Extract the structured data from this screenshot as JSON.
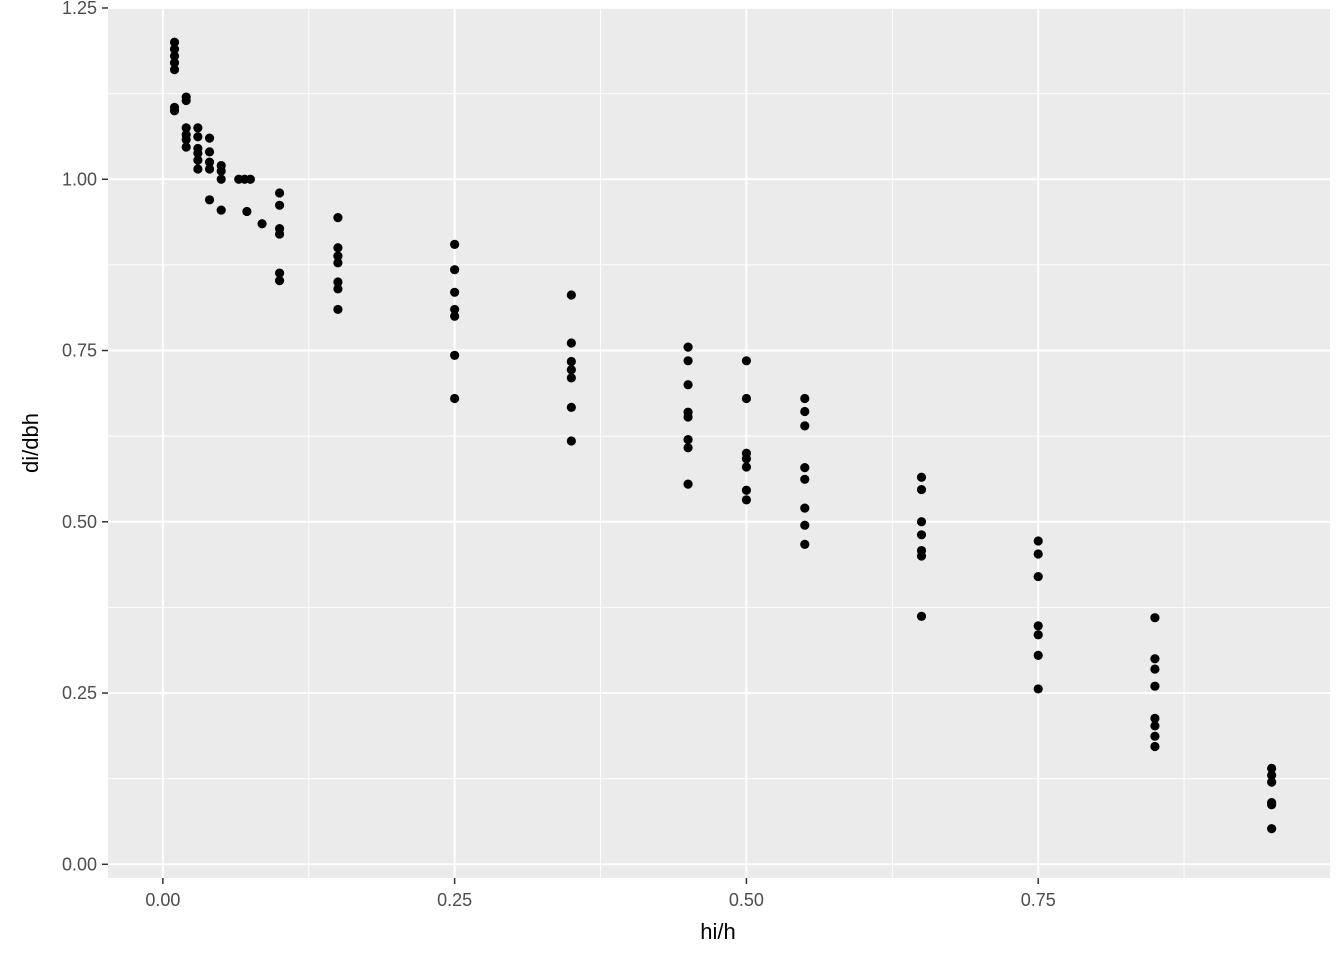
{
  "chart_data": {
    "type": "scatter",
    "title": "",
    "xlabel": "hi/h",
    "ylabel": "di/dbh",
    "xlim": [
      -0.047,
      1.0
    ],
    "ylim": [
      -0.02,
      1.25
    ],
    "x_ticks": [
      0.0,
      0.25,
      0.5,
      0.75
    ],
    "x_tick_labels": [
      "0.00",
      "0.25",
      "0.50",
      "0.75"
    ],
    "y_ticks": [
      0.0,
      0.25,
      0.5,
      0.75,
      1.0,
      1.25
    ],
    "y_tick_labels": [
      "0.00",
      "0.25",
      "0.50",
      "0.75",
      "1.00",
      "1.25"
    ],
    "grid": true,
    "legend": "none",
    "colors": {
      "panel": "#ebebeb",
      "grid": "#ffffff",
      "point": "#000000",
      "tick": "#333333"
    },
    "points": [
      [
        0.01,
        1.2
      ],
      [
        0.01,
        1.19
      ],
      [
        0.01,
        1.18
      ],
      [
        0.01,
        1.17
      ],
      [
        0.01,
        1.16
      ],
      [
        0.01,
        1.105
      ],
      [
        0.01,
        1.1
      ],
      [
        0.02,
        1.12
      ],
      [
        0.02,
        1.115
      ],
      [
        0.02,
        1.075
      ],
      [
        0.02,
        1.065
      ],
      [
        0.02,
        1.058
      ],
      [
        0.02,
        1.047
      ],
      [
        0.03,
        1.075
      ],
      [
        0.03,
        1.062
      ],
      [
        0.03,
        1.045
      ],
      [
        0.03,
        1.038
      ],
      [
        0.03,
        1.028
      ],
      [
        0.03,
        1.015
      ],
      [
        0.04,
        1.06
      ],
      [
        0.04,
        1.04
      ],
      [
        0.04,
        1.025
      ],
      [
        0.04,
        1.015
      ],
      [
        0.04,
        0.97
      ],
      [
        0.05,
        1.02
      ],
      [
        0.05,
        1.012
      ],
      [
        0.05,
        1.0
      ],
      [
        0.05,
        0.955
      ],
      [
        0.065,
        1.0
      ],
      [
        0.07,
        1.0
      ],
      [
        0.075,
        1.0
      ],
      [
        0.072,
        0.953
      ],
      [
        0.085,
        0.935
      ],
      [
        0.1,
        0.98
      ],
      [
        0.1,
        0.962
      ],
      [
        0.1,
        0.928
      ],
      [
        0.1,
        0.92
      ],
      [
        0.1,
        0.863
      ],
      [
        0.1,
        0.852
      ],
      [
        0.15,
        0.944
      ],
      [
        0.15,
        0.9
      ],
      [
        0.15,
        0.888
      ],
      [
        0.15,
        0.878
      ],
      [
        0.15,
        0.85
      ],
      [
        0.15,
        0.84
      ],
      [
        0.15,
        0.81
      ],
      [
        0.25,
        0.905
      ],
      [
        0.25,
        0.868
      ],
      [
        0.25,
        0.835
      ],
      [
        0.25,
        0.81
      ],
      [
        0.25,
        0.8
      ],
      [
        0.25,
        0.743
      ],
      [
        0.25,
        0.68
      ],
      [
        0.35,
        0.831
      ],
      [
        0.35,
        0.761
      ],
      [
        0.35,
        0.734
      ],
      [
        0.35,
        0.722
      ],
      [
        0.35,
        0.71
      ],
      [
        0.35,
        0.667
      ],
      [
        0.35,
        0.618
      ],
      [
        0.45,
        0.755
      ],
      [
        0.45,
        0.735
      ],
      [
        0.45,
        0.7
      ],
      [
        0.45,
        0.66
      ],
      [
        0.45,
        0.653
      ],
      [
        0.45,
        0.62
      ],
      [
        0.45,
        0.608
      ],
      [
        0.45,
        0.555
      ],
      [
        0.5,
        0.735
      ],
      [
        0.5,
        0.68
      ],
      [
        0.5,
        0.6
      ],
      [
        0.5,
        0.592
      ],
      [
        0.5,
        0.58
      ],
      [
        0.5,
        0.546
      ],
      [
        0.5,
        0.532
      ],
      [
        0.55,
        0.68
      ],
      [
        0.55,
        0.661
      ],
      [
        0.55,
        0.64
      ],
      [
        0.55,
        0.579
      ],
      [
        0.55,
        0.562
      ],
      [
        0.55,
        0.52
      ],
      [
        0.55,
        0.495
      ],
      [
        0.55,
        0.467
      ],
      [
        0.65,
        0.565
      ],
      [
        0.65,
        0.547
      ],
      [
        0.65,
        0.5
      ],
      [
        0.65,
        0.481
      ],
      [
        0.65,
        0.458
      ],
      [
        0.65,
        0.45
      ],
      [
        0.65,
        0.362
      ],
      [
        0.75,
        0.472
      ],
      [
        0.75,
        0.453
      ],
      [
        0.75,
        0.42
      ],
      [
        0.75,
        0.348
      ],
      [
        0.75,
        0.335
      ],
      [
        0.75,
        0.305
      ],
      [
        0.75,
        0.256
      ],
      [
        0.85,
        0.36
      ],
      [
        0.85,
        0.3
      ],
      [
        0.85,
        0.285
      ],
      [
        0.85,
        0.26
      ],
      [
        0.85,
        0.213
      ],
      [
        0.85,
        0.202
      ],
      [
        0.85,
        0.187
      ],
      [
        0.85,
        0.172
      ],
      [
        0.95,
        0.14
      ],
      [
        0.95,
        0.13
      ],
      [
        0.95,
        0.12
      ],
      [
        0.95,
        0.09
      ],
      [
        0.95,
        0.087
      ],
      [
        0.95,
        0.052
      ]
    ]
  }
}
